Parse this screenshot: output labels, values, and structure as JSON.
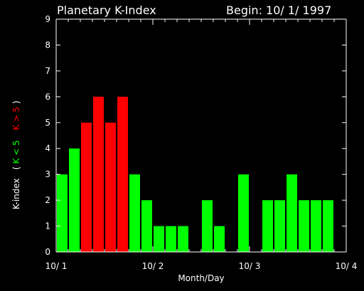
{
  "header": {
    "title": "Planetary K-Index",
    "begin": "Begin: 10/ 1/ 1997"
  },
  "y_axis_title": {
    "part1": "K-index",
    "part2": "( ",
    "part3": "K < 5",
    "part4": "K > 5",
    "part5": " )"
  },
  "colors": {
    "low": "#00ff00",
    "high": "#ff0000",
    "background": "#000000",
    "axis": "#ffffff"
  },
  "chart_data": {
    "type": "bar",
    "title": "Planetary K-Index",
    "xlabel": "Month/Day",
    "ylabel": "K-index  ( K < 5   K > 5 )",
    "ylim": [
      0,
      9
    ],
    "xlim": [
      0,
      24
    ],
    "yticks": [
      "0",
      "1",
      "2",
      "3",
      "4",
      "5",
      "6",
      "7",
      "8",
      "9"
    ],
    "xticks": [
      {
        "label": "10/ 1",
        "x": 0
      },
      {
        "label": "10/ 2",
        "x": 8
      },
      {
        "label": "10/ 3",
        "x": 16
      },
      {
        "label": "10/ 4",
        "x": 24
      }
    ],
    "interval_hours": 3,
    "values": [
      3,
      4,
      5,
      6,
      5,
      6,
      3,
      2,
      1,
      1,
      1,
      0,
      2,
      1,
      0,
      3,
      0,
      2,
      2,
      3,
      2,
      2,
      2,
      0
    ],
    "threshold": 5,
    "grid": false
  }
}
